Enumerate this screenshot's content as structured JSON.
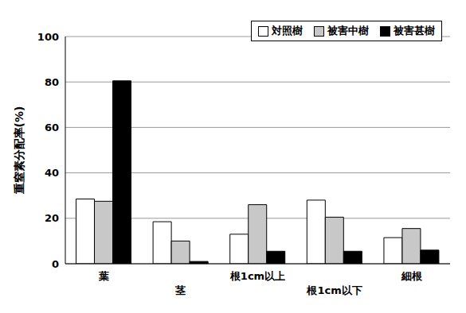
{
  "chart_data": {
    "type": "bar",
    "y_label": "重窒素分配率(%)",
    "categories": [
      "葉",
      "茎",
      "根1cm以上",
      "根1cm以下",
      "細根"
    ],
    "series": [
      {
        "name": "対照樹",
        "color": "#ffffff",
        "values": [
          28.5,
          18.5,
          13,
          28,
          11.5
        ]
      },
      {
        "name": "被害中樹",
        "color": "#c8c8c8",
        "values": [
          27.5,
          10,
          26,
          20.5,
          15.5
        ]
      },
      {
        "name": "被害甚樹",
        "color": "#000000",
        "values": [
          80.5,
          1,
          5.5,
          5.5,
          6
        ]
      }
    ],
    "ylim": [
      0,
      100
    ],
    "yticks": [
      0,
      20,
      40,
      60,
      80,
      100
    ],
    "grid": true,
    "legend": "upper right"
  }
}
